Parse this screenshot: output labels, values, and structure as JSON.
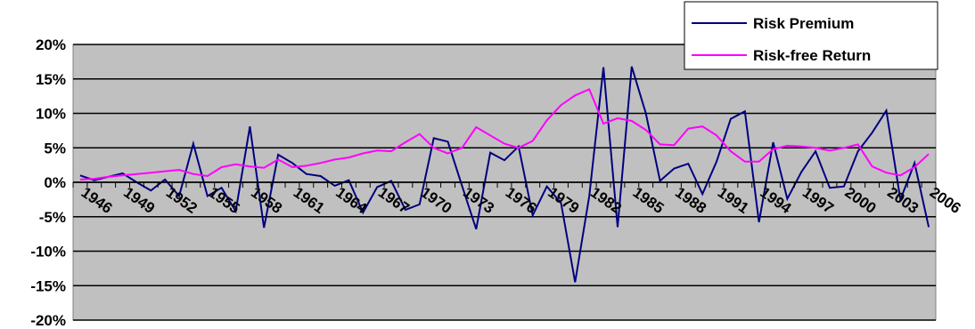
{
  "chart_data": {
    "type": "line",
    "categories": [
      "1946",
      null,
      null,
      "1949",
      null,
      null,
      "1952",
      null,
      null,
      "1955",
      null,
      null,
      "1958",
      null,
      null,
      "1961",
      null,
      null,
      "1964",
      null,
      null,
      "1967",
      null,
      null,
      "1970",
      null,
      null,
      "1973",
      null,
      null,
      "1976",
      null,
      null,
      "1979",
      null,
      null,
      "1982",
      null,
      null,
      "1985",
      null,
      null,
      "1988",
      null,
      null,
      "1991",
      null,
      null,
      "1994",
      null,
      null,
      "1997",
      null,
      null,
      "2000",
      null,
      null,
      "2003",
      null,
      null,
      "2006"
    ],
    "series": [
      {
        "name": "Risk Premium",
        "color": "#000080",
        "values": [
          1.0,
          0.3,
          0.8,
          1.3,
          0.0,
          -1.2,
          0.4,
          -2.0,
          5.6,
          -2.0,
          -0.8,
          -4.2,
          8.1,
          -6.6,
          4.0,
          2.8,
          1.2,
          0.9,
          -0.5,
          0.3,
          -4.4,
          -0.7,
          0.2,
          -4.0,
          -3.2,
          6.4,
          5.9,
          -0.5,
          -6.8,
          4.3,
          3.2,
          5.2,
          -4.8,
          -0.6,
          -3.0,
          -14.5,
          -2.0,
          16.7,
          -6.5,
          16.8,
          10.0,
          0.2,
          2.0,
          2.7,
          -1.7,
          3.0,
          9.2,
          10.3,
          -5.8,
          5.8,
          -2.4,
          1.5,
          4.5,
          -0.8,
          -0.6,
          4.5,
          7.2,
          10.4,
          -2.5,
          2.8,
          -6.5
        ]
      },
      {
        "name": "Risk-free Return",
        "color": "#ff00ff",
        "values": [
          0.4,
          0.5,
          0.8,
          1.0,
          1.2,
          1.4,
          1.6,
          1.8,
          1.2,
          0.9,
          2.2,
          2.6,
          2.3,
          2.1,
          3.3,
          2.2,
          2.4,
          2.8,
          3.3,
          3.6,
          4.2,
          4.6,
          4.5,
          5.8,
          7.0,
          5.0,
          4.2,
          5.0,
          8.0,
          6.8,
          5.6,
          5.0,
          6.0,
          9.0,
          11.2,
          12.6,
          13.5,
          8.5,
          9.3,
          8.9,
          7.6,
          5.5,
          5.4,
          7.8,
          8.1,
          6.8,
          4.5,
          3.0,
          3.0,
          4.8,
          5.3,
          5.2,
          5.0,
          4.6,
          5.0,
          5.5,
          2.3,
          1.4,
          1.0,
          2.2,
          4.1
        ]
      }
    ],
    "ylim": [
      -20,
      20
    ],
    "yticks": [
      {
        "value": -20,
        "label": "-20%"
      },
      {
        "value": -15,
        "label": "-15%"
      },
      {
        "value": -10,
        "label": "-10%"
      },
      {
        "value": -5,
        "label": "-5%"
      },
      {
        "value": 0,
        "label": "0%"
      },
      {
        "value": 5,
        "label": "5%"
      },
      {
        "value": 10,
        "label": "10%"
      },
      {
        "value": 15,
        "label": "15%"
      },
      {
        "value": 20,
        "label": "20%"
      }
    ],
    "grid": true
  }
}
